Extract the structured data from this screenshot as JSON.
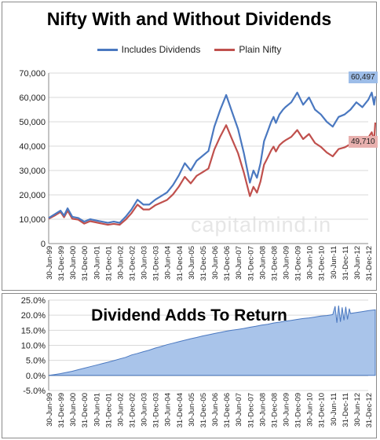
{
  "watermark": "capitalmind.in",
  "colors": {
    "blue": "#4a78c0",
    "red": "#c0504d",
    "blue_fill": "#a9c4ea",
    "grid": "#d9d9d9"
  },
  "chart_data": [
    {
      "type": "line",
      "title": "Nifty With and Without Dividends",
      "ylim": [
        0,
        70000
      ],
      "yticks": [
        0,
        10000,
        20000,
        30000,
        40000,
        50000,
        60000,
        70000
      ],
      "ytick_labels": [
        "0",
        "10,000",
        "20,000",
        "30,000",
        "40,000",
        "50,000",
        "60,000",
        "70,000"
      ],
      "xtick_labels": [
        "30-Jun-99",
        "31-Dec-99",
        "30-Jun-00",
        "31-Dec-00",
        "30-Jun-01",
        "31-Dec-01",
        "30-Jun-02",
        "31-Dec-02",
        "30-Jun-03",
        "31-Dec-03",
        "30-Jun-04",
        "31-Dec-04",
        "30-Jun-05",
        "31-Dec-05",
        "30-Jun-06",
        "31-Dec-06",
        "30-Jun-07",
        "31-Dec-07",
        "30-Jun-08",
        "31-Dec-08",
        "30-Jun-09",
        "31-Dec-09",
        "30-Jun-10",
        "31-Dec-10",
        "30-Jun-11",
        "31-Dec-11",
        "30-Jun-12",
        "31-Dec-12"
      ],
      "x_note": "half-year positions; 0 = 30-Jun-99, last point ~13-Apr",
      "series": [
        {
          "name": "Includes Dividends",
          "end_label": "60,497",
          "x": [
            0,
            0.5,
            1,
            1.3,
            1.6,
            2,
            2.5,
            3,
            3.5,
            4,
            4.5,
            5,
            5.5,
            6,
            6.5,
            7,
            7.5,
            8,
            8.5,
            9,
            9.5,
            10,
            10.5,
            11,
            11.5,
            12,
            12.5,
            13,
            13.5,
            14,
            14.5,
            15,
            15.5,
            16,
            16.5,
            17,
            17.3,
            17.6,
            17.9,
            18.2,
            18.5,
            18.8,
            19,
            19.2,
            19.5,
            19.8,
            20,
            20.5,
            21,
            21.5,
            22,
            22.5,
            23,
            23.5,
            24,
            24.5,
            25,
            25.5,
            26,
            26.5,
            27,
            27.3,
            27.5,
            27.6
          ],
          "values": [
            10500,
            12000,
            13500,
            11500,
            14500,
            11000,
            10500,
            9000,
            10000,
            9500,
            9000,
            8500,
            9000,
            8500,
            11000,
            14000,
            18000,
            16000,
            16000,
            18000,
            19500,
            21000,
            24000,
            28000,
            33000,
            30000,
            34000,
            36000,
            38000,
            48000,
            55000,
            61000,
            54000,
            47000,
            37000,
            25000,
            30000,
            27000,
            33000,
            42000,
            46000,
            50000,
            52000,
            49500,
            53000,
            55000,
            56000,
            58000,
            62000,
            57000,
            60000,
            55000,
            53000,
            50000,
            48000,
            52000,
            53000,
            55000,
            58000,
            56000,
            59000,
            62000,
            57000,
            60497
          ]
        },
        {
          "name": "Plain Nifty",
          "end_label": "49,710",
          "x": [
            0,
            0.5,
            1,
            1.3,
            1.6,
            2,
            2.5,
            3,
            3.5,
            4,
            4.5,
            5,
            5.5,
            6,
            6.5,
            7,
            7.5,
            8,
            8.5,
            9,
            9.5,
            10,
            10.5,
            11,
            11.5,
            12,
            12.5,
            13,
            13.5,
            14,
            14.5,
            15,
            15.5,
            16,
            16.5,
            17,
            17.3,
            17.6,
            17.9,
            18.2,
            18.5,
            18.8,
            19,
            19.2,
            19.5,
            19.8,
            20,
            20.5,
            21,
            21.5,
            22,
            22.5,
            23,
            23.5,
            24,
            24.5,
            25,
            25.5,
            26,
            26.5,
            27,
            27.3,
            27.5,
            27.6
          ],
          "values": [
            10200,
            11500,
            13000,
            10800,
            13500,
            10200,
            9800,
            8200,
            9200,
            8700,
            8200,
            7700,
            8100,
            7700,
            9800,
            12500,
            16000,
            14000,
            14000,
            15700,
            16800,
            17900,
            20200,
            23400,
            27400,
            24700,
            27800,
            29300,
            30800,
            38600,
            44000,
            48600,
            42800,
            37100,
            29000,
            19500,
            23300,
            20900,
            25500,
            32400,
            35300,
            38300,
            39800,
            37800,
            40400,
            41700,
            42400,
            43800,
            46600,
            42900,
            45000,
            41300,
            39700,
            37400,
            35800,
            38800,
            39500,
            40800,
            42900,
            41400,
            43500,
            45700,
            41900,
            49710
          ]
        }
      ]
    },
    {
      "type": "area",
      "title": "Dividend Adds To Return",
      "ylim": [
        -5,
        25
      ],
      "yticks": [
        -5,
        0,
        5,
        10,
        15,
        20,
        25
      ],
      "ytick_labels": [
        "-5.0%",
        "0.0%",
        "5.0%",
        "10.0%",
        "15.0%",
        "20.0%",
        "25.0%"
      ],
      "xtick_labels": [
        "30-Jun-99",
        "31-Dec-99",
        "30-Jun-00",
        "31-Dec-00",
        "30-Jun-01",
        "31-Dec-01",
        "30-Jun-02",
        "31-Dec-02",
        "30-Jun-03",
        "31-Dec-03",
        "30-Jun-04",
        "31-Dec-04",
        "30-Jun-05",
        "31-Dec-05",
        "30-Jun-06",
        "31-Dec-06",
        "30-Jun-07",
        "31-Dec-07",
        "30-Jun-08",
        "31-Dec-08",
        "30-Jun-09",
        "31-Dec-09",
        "30-Jun-10",
        "31-Dec-10",
        "30-Jun-11",
        "31-Dec-11",
        "30-Jun-12",
        "31-Dec-12"
      ],
      "series": [
        {
          "x": [
            0,
            0.5,
            1,
            1.5,
            2,
            2.5,
            3,
            3.5,
            4,
            4.5,
            5,
            5.5,
            6,
            6.5,
            7,
            7.5,
            8,
            8.5,
            9,
            9.5,
            10,
            10.5,
            11,
            11.5,
            12,
            12.5,
            13,
            13.5,
            14,
            14.5,
            15,
            15.5,
            16,
            16.5,
            17,
            17.5,
            18,
            18.5,
            19,
            19.5,
            20,
            20.5,
            21,
            21.5,
            22,
            22.5,
            23,
            23.5,
            24,
            24.2,
            24.35,
            24.5,
            24.65,
            24.8,
            24.95,
            25.1,
            25.25,
            25.4,
            25.5,
            26,
            26.5,
            27,
            27.6
          ],
          "values": [
            0,
            0.3,
            0.6,
            1.0,
            1.4,
            1.9,
            2.4,
            2.9,
            3.4,
            3.9,
            4.4,
            4.9,
            5.5,
            6.0,
            6.8,
            7.3,
            7.9,
            8.4,
            9.1,
            9.6,
            10.2,
            10.7,
            11.2,
            11.7,
            12.2,
            12.6,
            13.1,
            13.5,
            13.9,
            14.3,
            14.7,
            15.0,
            15.3,
            15.6,
            16.0,
            16.3,
            16.7,
            17.0,
            17.4,
            17.7,
            18.0,
            18.3,
            18.6,
            18.9,
            19.1,
            19.4,
            19.7,
            19.9,
            20.2,
            23.0,
            17.5,
            23.2,
            17.8,
            22.6,
            18.3,
            22.8,
            18.6,
            22.2,
            20.6,
            20.9,
            21.2,
            21.5,
            21.8
          ]
        }
      ]
    }
  ]
}
